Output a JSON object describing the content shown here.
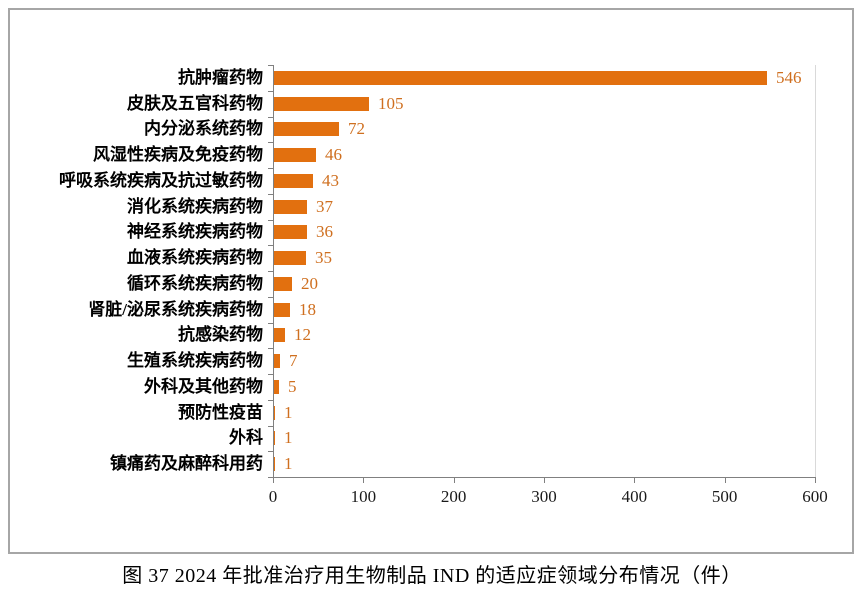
{
  "figure": {
    "caption": "图 37  2024 年批准治疗用生物制品 IND 的适应症领域分布情况（件）"
  },
  "colors": {
    "bar": "#e2700f",
    "value_label": "#cf6f1f",
    "axis": "#808080",
    "figure_border": "#a6a6a6",
    "tick_label": "#1a1a1a"
  },
  "chart_data": {
    "type": "bar",
    "orientation": "horizontal",
    "title": "图 37  2024 年批准治疗用生物制品 IND 的适应症领域分布情况（件）",
    "xlabel": "",
    "ylabel": "",
    "categories": [
      "抗肿瘤药物",
      "皮肤及五官科药物",
      "内分泌系统药物",
      "风湿性疾病及免疫药物",
      "呼吸系统疾病及抗过敏药物",
      "消化系统疾病药物",
      "神经系统疾病药物",
      "血液系统疾病药物",
      "循环系统疾病药物",
      "肾脏/泌尿系统疾病药物",
      "抗感染药物",
      "生殖系统疾病药物",
      "外科及其他药物",
      "预防性疫苗",
      "外科",
      "镇痛药及麻醉科用药"
    ],
    "values": [
      546,
      105,
      72,
      46,
      43,
      37,
      36,
      35,
      20,
      18,
      12,
      7,
      5,
      1,
      1,
      1
    ],
    "xlim": [
      0,
      600
    ],
    "xticks": [
      0,
      100,
      200,
      300,
      400,
      500,
      600
    ],
    "grid": false,
    "legend": null,
    "value_labels_shown": true
  }
}
